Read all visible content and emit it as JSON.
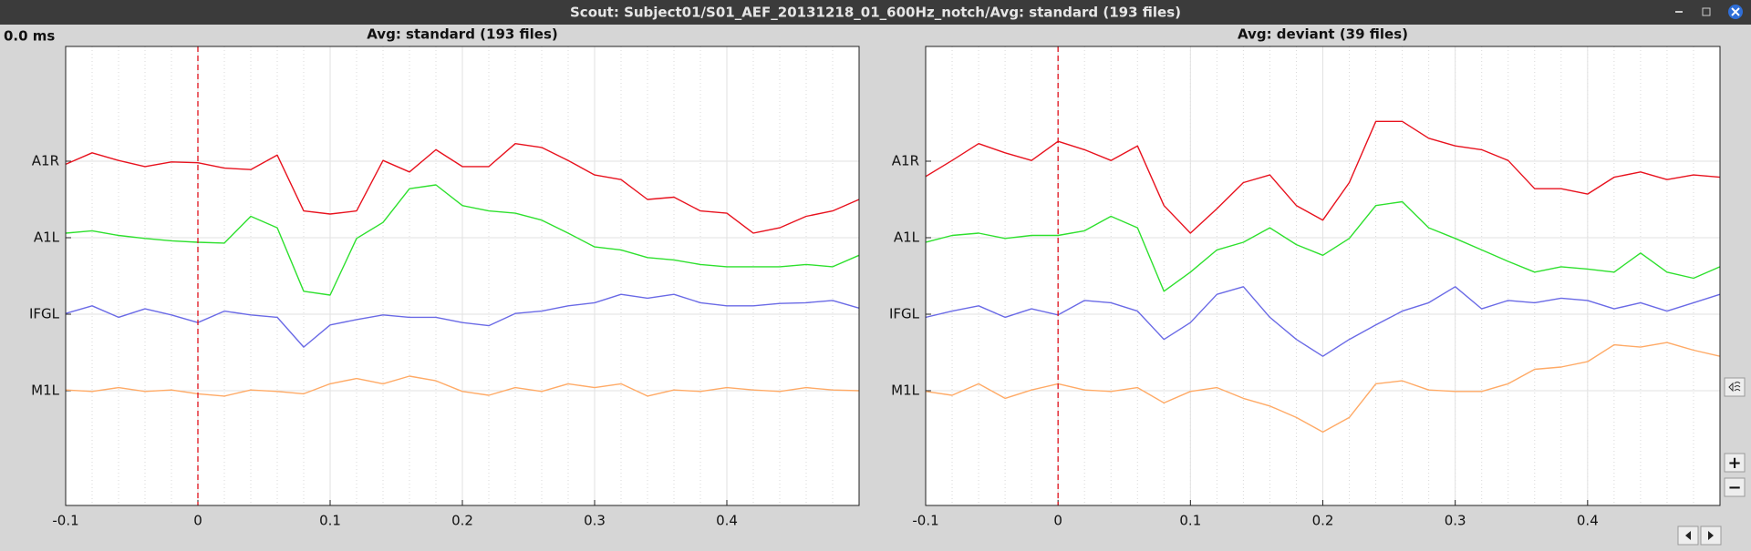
{
  "window": {
    "title": "Scout: Subject01/S01_AEF_20131218_01_600Hz_notch/Avg: standard (193 files)",
    "time_label": "0.0 ms",
    "zoom_buttons": [
      "+",
      "−"
    ]
  },
  "chart_data": [
    {
      "type": "line",
      "title": "Avg: standard (193 files)",
      "x": [
        -0.1,
        -0.08,
        -0.06,
        -0.04,
        -0.02,
        0,
        0.02,
        0.04,
        0.06,
        0.08,
        0.1,
        0.12,
        0.14,
        0.16,
        0.18,
        0.2,
        0.22,
        0.24,
        0.26,
        0.28,
        0.3,
        0.32,
        0.34,
        0.36,
        0.38,
        0.4,
        0.42,
        0.44,
        0.46,
        0.48,
        0.5
      ],
      "xlim": [
        -0.1,
        0.5
      ],
      "xticks": [
        -0.1,
        0,
        0.1,
        0.2,
        0.3,
        0.4
      ],
      "ylim": [
        -1.5,
        4.5
      ],
      "yticks": [
        {
          "value": 3,
          "label": "A1R"
        },
        {
          "value": 2,
          "label": "A1L"
        },
        {
          "value": 1,
          "label": "IFGL"
        },
        {
          "value": 0,
          "label": "M1L"
        }
      ],
      "grid": true,
      "minor_grid": true,
      "cursor": 0,
      "cursor_color": "#e0101a",
      "series": [
        {
          "color": "#e8121e",
          "values": [
            2.96,
            3.11,
            3.01,
            2.93,
            2.99,
            2.98,
            2.91,
            2.89,
            3.08,
            2.35,
            2.31,
            2.35,
            3.01,
            2.86,
            3.15,
            2.93,
            2.93,
            3.23,
            3.18,
            3.01,
            2.82,
            2.76,
            2.5,
            2.53,
            2.35,
            2.32,
            2.06,
            2.13,
            2.28,
            2.35,
            2.5
          ]
        },
        {
          "color": "#2ee02e",
          "values": [
            2.06,
            2.09,
            2.03,
            1.99,
            1.96,
            1.94,
            1.93,
            2.28,
            2.13,
            1.3,
            1.25,
            1.99,
            2.2,
            2.64,
            2.69,
            2.42,
            2.35,
            2.32,
            2.23,
            2.06,
            1.88,
            1.84,
            1.74,
            1.71,
            1.65,
            1.62,
            1.62,
            1.62,
            1.65,
            1.62,
            1.77
          ]
        },
        {
          "color": "#6a6ae6",
          "values": [
            1.01,
            1.11,
            0.96,
            1.07,
            0.99,
            0.89,
            1.04,
            0.99,
            0.96,
            0.57,
            0.86,
            0.93,
            0.99,
            0.96,
            0.96,
            0.89,
            0.85,
            1.01,
            1.04,
            1.11,
            1.15,
            1.26,
            1.21,
            1.26,
            1.15,
            1.11,
            1.11,
            1.14,
            1.15,
            1.18,
            1.08
          ]
        },
        {
          "color": "#ffaa66",
          "values": [
            0.01,
            -0.01,
            0.04,
            -0.01,
            0.01,
            -0.04,
            -0.07,
            0.01,
            -0.01,
            -0.04,
            0.09,
            0.16,
            0.09,
            0.19,
            0.13,
            -0.01,
            -0.06,
            0.04,
            -0.01,
            0.09,
            0.04,
            0.09,
            -0.07,
            0.01,
            -0.01,
            0.04,
            0.01,
            -0.01,
            0.04,
            0.01,
            0
          ]
        }
      ]
    },
    {
      "type": "line",
      "title": "Avg: deviant (39 files)",
      "x": [
        -0.1,
        -0.08,
        -0.06,
        -0.04,
        -0.02,
        0,
        0.02,
        0.04,
        0.06,
        0.08,
        0.1,
        0.12,
        0.14,
        0.16,
        0.18,
        0.2,
        0.22,
        0.24,
        0.26,
        0.28,
        0.3,
        0.32,
        0.34,
        0.36,
        0.38,
        0.4,
        0.42,
        0.44,
        0.46,
        0.48,
        0.5
      ],
      "xlim": [
        -0.1,
        0.5
      ],
      "xticks": [
        -0.1,
        0,
        0.1,
        0.2,
        0.3,
        0.4
      ],
      "ylim": [
        -1.5,
        4.5
      ],
      "yticks": [
        {
          "value": 3,
          "label": "A1R"
        },
        {
          "value": 2,
          "label": "A1L"
        },
        {
          "value": 1,
          "label": "IFGL"
        },
        {
          "value": 0,
          "label": "M1L"
        }
      ],
      "grid": true,
      "minor_grid": true,
      "cursor": 0,
      "cursor_color": "#e0101a",
      "series": [
        {
          "color": "#e8121e",
          "values": [
            2.8,
            3.01,
            3.23,
            3.11,
            3.01,
            3.26,
            3.15,
            3.01,
            3.2,
            2.42,
            2.06,
            2.38,
            2.72,
            2.82,
            2.42,
            2.23,
            2.72,
            3.52,
            3.52,
            3.3,
            3.2,
            3.15,
            3.01,
            2.64,
            2.64,
            2.57,
            2.79,
            2.86,
            2.76,
            2.82,
            2.79
          ]
        },
        {
          "color": "#2ee02e",
          "values": [
            1.94,
            2.03,
            2.06,
            1.99,
            2.03,
            2.03,
            2.09,
            2.28,
            2.13,
            1.3,
            1.55,
            1.84,
            1.94,
            2.13,
            1.91,
            1.77,
            1.99,
            2.42,
            2.47,
            2.13,
            1.99,
            1.84,
            1.69,
            1.55,
            1.62,
            1.59,
            1.55,
            1.8,
            1.55,
            1.47,
            1.62
          ]
        },
        {
          "color": "#6a6ae6",
          "values": [
            0.96,
            1.04,
            1.11,
            0.96,
            1.07,
            0.99,
            1.18,
            1.15,
            1.04,
            0.67,
            0.89,
            1.26,
            1.36,
            0.96,
            0.67,
            0.45,
            0.67,
            0.86,
            1.04,
            1.15,
            1.36,
            1.07,
            1.18,
            1.15,
            1.21,
            1.18,
            1.07,
            1.15,
            1.04,
            1.15,
            1.26
          ]
        },
        {
          "color": "#ffaa66",
          "values": [
            -0.01,
            -0.06,
            0.09,
            -0.1,
            0.01,
            0.09,
            0.01,
            -0.01,
            0.04,
            -0.16,
            -0.01,
            0.04,
            -0.1,
            -0.2,
            -0.35,
            -0.54,
            -0.35,
            0.09,
            0.13,
            0.01,
            -0.01,
            -0.01,
            0.09,
            0.28,
            0.31,
            0.38,
            0.6,
            0.57,
            0.63,
            0.53,
            0.45
          ]
        }
      ]
    }
  ]
}
